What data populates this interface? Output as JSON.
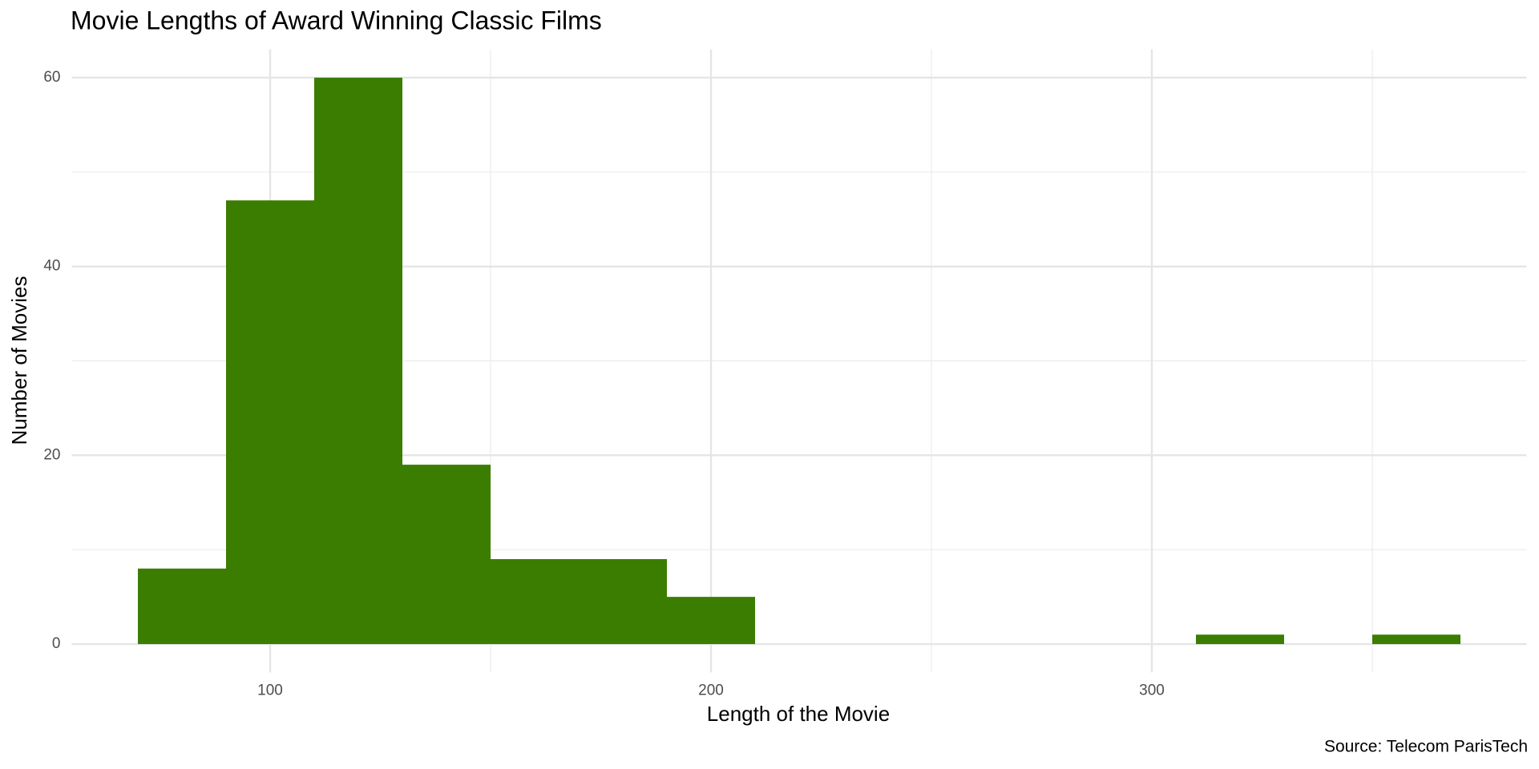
{
  "chart_data": {
    "type": "histogram",
    "title": "Movie Lengths of Award Winning Classic Films",
    "x_label": "Length of the Movie",
    "y_label": "Number of Movies",
    "caption": "Source: Telecom ParisTech",
    "bins": [
      70,
      90,
      110,
      130,
      150,
      170,
      190,
      210,
      230,
      250,
      270,
      290,
      310,
      330,
      350,
      370
    ],
    "values": [
      8,
      47,
      60,
      19,
      9,
      9,
      5,
      0,
      0,
      0,
      0,
      0,
      1,
      0,
      1
    ],
    "color": "#3a7d00",
    "xlim": [
      55,
      385
    ],
    "xticks": [
      100,
      200,
      300
    ],
    "x_minor_ticks": [
      150,
      250,
      350
    ],
    "ylim": [
      -3,
      63
    ],
    "yticks": [
      0,
      20,
      40,
      60
    ],
    "y_minor_ticks": [
      10,
      30,
      50
    ],
    "grid": true
  }
}
